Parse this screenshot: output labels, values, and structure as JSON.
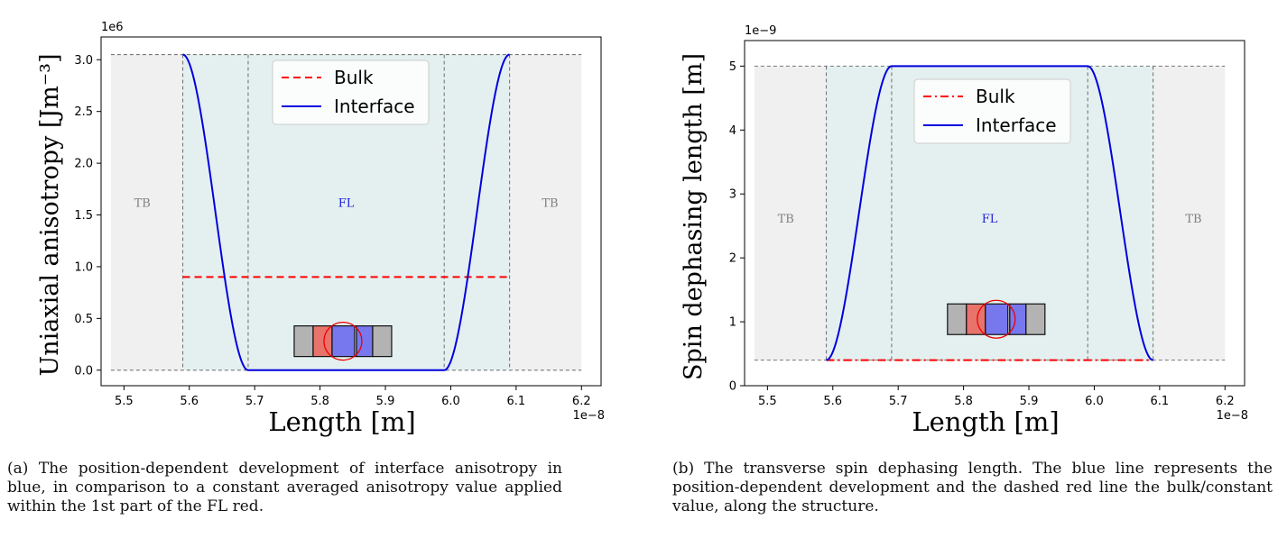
{
  "charts": [
    {
      "id": "a",
      "caption": "(a) The position-dependent development of interface anisotropy in blue, in comparison to a constant averaged anisotropy value applied within the 1st part of the FL red.",
      "chart_data": {
        "type": "line",
        "xlabel": "Length [m]",
        "ylabel": "Uniaxial anisotropy [Jm⁻³]",
        "x_offset_label": "1e−8",
        "y_offset_label": "1e6",
        "xlim": [
          5.465,
          6.23
        ],
        "ylim": [
          -0.15,
          3.22
        ],
        "xticks": [
          5.5,
          5.6,
          5.7,
          5.8,
          5.9,
          6.0,
          6.1,
          6.2
        ],
        "xtick_labels": [
          "5.5",
          "5.6",
          "5.7",
          "5.8",
          "5.9",
          "6.0",
          "6.1",
          "6.2"
        ],
        "yticks": [
          0,
          0.5,
          1.0,
          1.5,
          2.0,
          2.5,
          3.0
        ],
        "ytick_labels": [
          "0.0",
          "0.5",
          "1.0",
          "1.5",
          "2.0",
          "2.5",
          "3.0"
        ],
        "regions": [
          {
            "label": "TB",
            "x0": 5.48,
            "x1": 5.59,
            "color": "#f0f0f0",
            "text_color": "#808080"
          },
          {
            "label": "FL",
            "x0": 5.59,
            "x1": 6.09,
            "color": "#e4f0f0",
            "text_color": "#1f1fdd"
          },
          {
            "label": "TB",
            "x0": 6.09,
            "x1": 6.2,
            "color": "#f0f0f0",
            "text_color": "#808080"
          }
        ],
        "region_label_y": 1.58,
        "inner_bounds": [
          5.69,
          5.99
        ],
        "band": {
          "low": 0.0,
          "high": 3.05
        },
        "series": [
          {
            "name": "Bulk",
            "style": "dashed",
            "color": "#ff0000",
            "shape": "constant",
            "value": 0.9,
            "x_start": 5.59,
            "x_end": 6.09
          },
          {
            "name": "Interface",
            "style": "solid",
            "color": "#0000dd",
            "shape": "trough",
            "low": 0.0,
            "high": 3.05,
            "x_outer": [
              5.59,
              6.09
            ],
            "x_inner": [
              5.69,
              5.99
            ]
          }
        ],
        "legend": {
          "position": "upper-center",
          "entries": [
            "Bulk",
            "Interface"
          ]
        },
        "inset": {
          "x_center": 5.835,
          "y_center": 0.28
        }
      }
    },
    {
      "id": "b",
      "caption": "(b) The transverse spin dephasing length. The blue line represents the position-dependent development and the dashed red line the bulk/constant value, along the structure.",
      "chart_data": {
        "type": "line",
        "xlabel": "Length [m]",
        "ylabel": "Spin dephasing length [m]",
        "x_offset_label": "1e−8",
        "y_offset_label": "1e−9",
        "xlim": [
          5.465,
          6.23
        ],
        "ylim": [
          0,
          5.4
        ],
        "xticks": [
          5.5,
          5.6,
          5.7,
          5.8,
          5.9,
          6.0,
          6.1,
          6.2
        ],
        "xtick_labels": [
          "5.5",
          "5.6",
          "5.7",
          "5.8",
          "5.9",
          "6.0",
          "6.1",
          "6.2"
        ],
        "yticks": [
          0,
          1,
          2,
          3,
          4,
          5
        ],
        "ytick_labels": [
          "0",
          "1",
          "2",
          "3",
          "4",
          "5"
        ],
        "regions": [
          {
            "label": "TB",
            "x0": 5.48,
            "x1": 5.59,
            "color": "#f0f0f0",
            "text_color": "#808080"
          },
          {
            "label": "FL",
            "x0": 5.59,
            "x1": 6.09,
            "color": "#e4f0f0",
            "text_color": "#1f1fdd"
          },
          {
            "label": "TB",
            "x0": 6.09,
            "x1": 6.2,
            "color": "#f0f0f0",
            "text_color": "#808080"
          }
        ],
        "region_label_y": 2.55,
        "inner_bounds": [
          5.69,
          5.99
        ],
        "band": {
          "low": 0.4,
          "high": 5.0
        },
        "series": [
          {
            "name": "Bulk",
            "style": "dashdot",
            "color": "#ff0000",
            "shape": "constant",
            "value": 0.4,
            "x_start": 5.59,
            "x_end": 6.09
          },
          {
            "name": "Interface",
            "style": "solid",
            "color": "#0000dd",
            "shape": "plateau",
            "low": 0.4,
            "high": 5.0,
            "x_outer": [
              5.59,
              6.09
            ],
            "x_inner": [
              5.69,
              5.99
            ]
          }
        ],
        "legend": {
          "position": "upper-center",
          "entries": [
            "Bulk",
            "Interface"
          ]
        },
        "inset": {
          "x_center": 5.85,
          "y_center": 1.04
        }
      }
    }
  ]
}
